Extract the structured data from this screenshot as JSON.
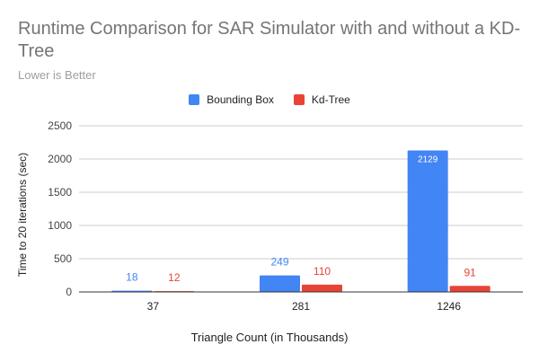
{
  "chart_data": {
    "type": "bar",
    "title": "Runtime Comparison for SAR Simulator with and without a KD-Tree",
    "subtitle": "Lower is Better",
    "xlabel": "Triangle Count (in Thousands)",
    "ylabel": "Time to 20 iterations (sec)",
    "categories": [
      "37",
      "281",
      "1246"
    ],
    "series": [
      {
        "name": "Bounding Box",
        "values": [
          18,
          249,
          2129
        ],
        "color": "#4285f4",
        "labels": [
          "18",
          "249",
          "2129"
        ]
      },
      {
        "name": "Kd-Tree",
        "values": [
          12,
          110,
          91
        ],
        "color": "#ea4335",
        "labels": [
          "12",
          "110",
          "91"
        ]
      }
    ],
    "ylim": [
      0,
      2500
    ],
    "yticks": [
      "0",
      "500",
      "1000",
      "1500",
      "2000",
      "2500"
    ],
    "grid": true,
    "legend_position": "top"
  }
}
